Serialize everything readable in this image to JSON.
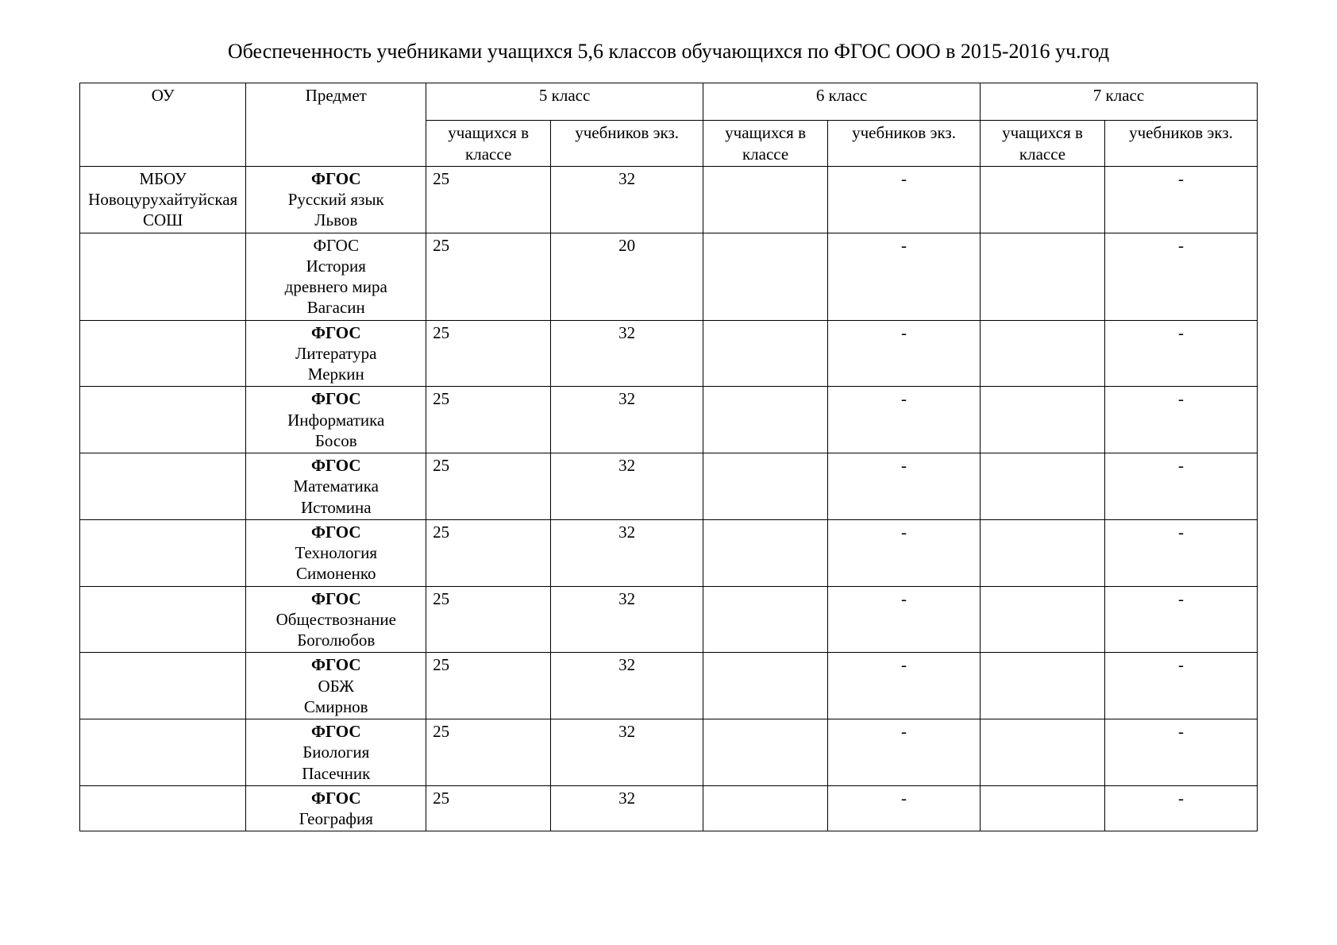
{
  "title": "Обеспеченность учебниками учащихся 5,6 классов обучающихся по ФГОС ООО в 2015-2016 уч.год",
  "columns": {
    "ou": "ОУ",
    "subject": "Предмет",
    "class5": "5 класс",
    "class6": "6 класс",
    "class7": "7 класс",
    "students": "учащихся в классе",
    "books": "учебников экз."
  },
  "school_lines": [
    "МБОУ",
    "Новоцурухайтуйская",
    "СОШ"
  ],
  "rows": [
    {
      "subj_bold": "ФГОС",
      "subj_lines": [
        "Русский язык",
        "Львов"
      ],
      "c5s": "25",
      "c5b": "32",
      "c6s": "",
      "c6b": "-",
      "c7s": "",
      "c7b": "-"
    },
    {
      "subj_bold": "",
      "subj_lines": [
        "ФГОС",
        "История",
        "древнего мира",
        "Вагасин"
      ],
      "c5s": "25",
      "c5b": "20",
      "c6s": "",
      "c6b": "-",
      "c7s": "",
      "c7b": "-"
    },
    {
      "subj_bold": "ФГОС",
      "subj_lines": [
        "Литература",
        "Меркин"
      ],
      "c5s": "25",
      "c5b": "32",
      "c6s": "",
      "c6b": "-",
      "c7s": "",
      "c7b": "-"
    },
    {
      "subj_bold": "ФГОС",
      "subj_lines": [
        "Информатика",
        "Босов"
      ],
      "c5s": "25",
      "c5b": "32",
      "c6s": "",
      "c6b": "-",
      "c7s": "",
      "c7b": "-"
    },
    {
      "subj_bold": "ФГОС",
      "subj_lines": [
        "Математика",
        "Истомина"
      ],
      "c5s": "25",
      "c5b": "32",
      "c6s": "",
      "c6b": "-",
      "c7s": "",
      "c7b": "-"
    },
    {
      "subj_bold": "ФГОС",
      "subj_lines": [
        "Технология",
        "Симоненко"
      ],
      "c5s": "25",
      "c5b": "32",
      "c6s": "",
      "c6b": "-",
      "c7s": "",
      "c7b": "-"
    },
    {
      "subj_bold": "ФГОС",
      "subj_lines": [
        "Обществознание",
        "Боголюбов"
      ],
      "c5s": "25",
      "c5b": "32",
      "c6s": "",
      "c6b": "-",
      "c7s": "",
      "c7b": "-"
    },
    {
      "subj_bold": "ФГОС",
      "subj_lines": [
        "ОБЖ",
        "Смирнов"
      ],
      "c5s": "25",
      "c5b": "32",
      "c6s": "",
      "c6b": "-",
      "c7s": "",
      "c7b": "-"
    },
    {
      "subj_bold": "ФГОС",
      "subj_lines": [
        "Биология",
        "Пасечник"
      ],
      "c5s": "25",
      "c5b": "32",
      "c6s": "",
      "c6b": "-",
      "c7s": "",
      "c7b": "-"
    },
    {
      "subj_bold": "ФГОС",
      "subj_lines": [
        "География"
      ],
      "c5s": "25",
      "c5b": "32",
      "c6s": "",
      "c6b": "-",
      "c7s": "",
      "c7b": "-"
    }
  ],
  "col_widths": [
    "12%",
    "13%",
    "9%",
    "11%",
    "9%",
    "11%",
    "9%",
    "11%"
  ]
}
